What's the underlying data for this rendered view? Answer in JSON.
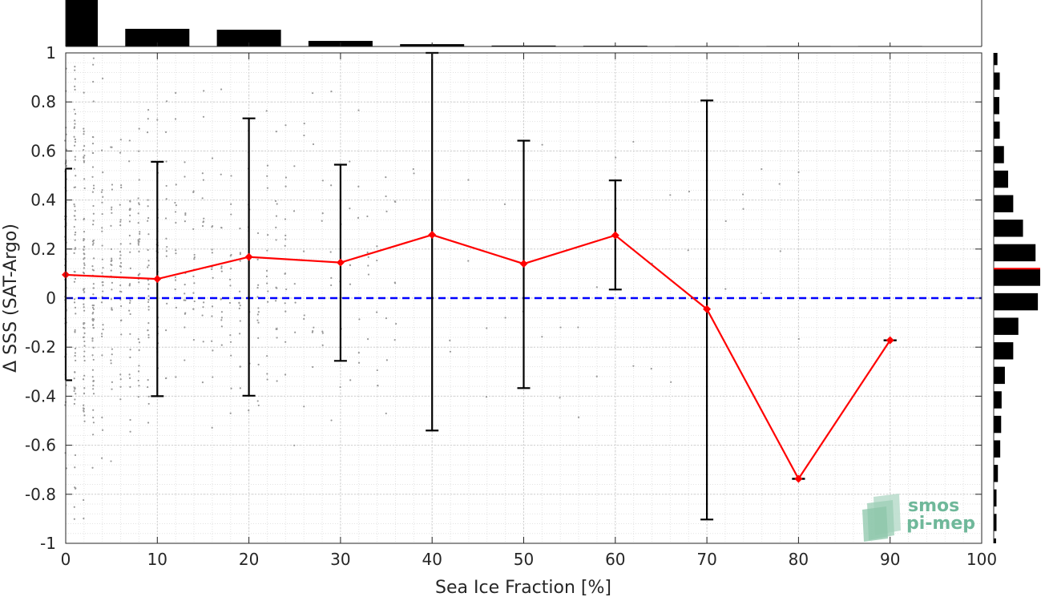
{
  "chart_data": {
    "type": "line",
    "xlabel": "Sea Ice Fraction [%]",
    "ylabel": "Δ SSS (SAT-Argo)",
    "xlim": [
      0,
      100
    ],
    "ylim": [
      -1,
      1
    ],
    "xticks": [
      0,
      10,
      20,
      30,
      40,
      50,
      60,
      70,
      80,
      90,
      100
    ],
    "yticks": [
      -1,
      -0.8,
      -0.6,
      -0.4,
      -0.2,
      0,
      0.2,
      0.4,
      0.6,
      0.8,
      1
    ],
    "xtick_labels": [
      "0",
      "10",
      "20",
      "30",
      "40",
      "50",
      "60",
      "70",
      "80",
      "90",
      "100"
    ],
    "ytick_labels": [
      "-1",
      "-0.8",
      "-0.6",
      "-0.4",
      "-0.2",
      "0",
      "0.2",
      "0.4",
      "0.6",
      "0.8",
      "1"
    ],
    "grid": true,
    "reference_line": {
      "y": 0,
      "color": "#0000ff",
      "style": "dashed"
    },
    "mean_series": {
      "color": "#ff0000",
      "x": [
        0,
        10,
        20,
        30,
        40,
        50,
        60,
        70,
        80,
        90
      ],
      "y": [
        0.095,
        0.078,
        0.168,
        0.145,
        0.258,
        0.14,
        0.256,
        -0.045,
        -0.737,
        -0.172
      ]
    },
    "error_bars": [
      {
        "x": 0,
        "low": -0.335,
        "high": 0.528
      },
      {
        "x": 10,
        "low": -0.4,
        "high": 0.556
      },
      {
        "x": 20,
        "low": -0.398,
        "high": 0.733
      },
      {
        "x": 30,
        "low": -0.256,
        "high": 0.544
      },
      {
        "x": 40,
        "low": -0.54,
        "high": 1.0
      },
      {
        "x": 50,
        "low": -0.367,
        "high": 0.642
      },
      {
        "x": 60,
        "low": 0.035,
        "high": 0.48
      },
      {
        "x": 70,
        "low": -0.903,
        "high": 0.806
      },
      {
        "x": 80,
        "low": -0.737,
        "high": -0.737
      },
      {
        "x": 90,
        "low": -0.172,
        "high": -0.172
      }
    ],
    "top_histogram": {
      "bins": [
        [
          0,
          3.5
        ],
        [
          6.5,
          13.5
        ],
        [
          16.5,
          23.5
        ],
        [
          26.5,
          33.5
        ],
        [
          36.5,
          43.5
        ],
        [
          46.5,
          53.5
        ],
        [
          56.5,
          63.5
        ],
        [
          66.5,
          73.5
        ],
        [
          76.5,
          83.5
        ],
        [
          86.5,
          93.5
        ]
      ],
      "heights": [
        1.0,
        0.38,
        0.36,
        0.12,
        0.05,
        0.02,
        0.015,
        0.01,
        0.01,
        0.01
      ],
      "color": "#000000"
    },
    "right_histogram": {
      "bins": [
        [
          0.95,
          1.0
        ],
        [
          0.85,
          0.92
        ],
        [
          0.75,
          0.82
        ],
        [
          0.65,
          0.72
        ],
        [
          0.55,
          0.62
        ],
        [
          0.45,
          0.52
        ],
        [
          0.35,
          0.42
        ],
        [
          0.25,
          0.32
        ],
        [
          0.15,
          0.22
        ],
        [
          0.05,
          0.12
        ],
        [
          -0.05,
          0.02
        ],
        [
          -0.15,
          -0.08
        ],
        [
          -0.25,
          -0.18
        ],
        [
          -0.35,
          -0.28
        ],
        [
          -0.45,
          -0.38
        ],
        [
          -0.55,
          -0.48
        ],
        [
          -0.65,
          -0.58
        ],
        [
          -0.75,
          -0.68
        ],
        [
          -0.85,
          -0.78
        ],
        [
          -0.95,
          -0.88
        ],
        [
          -1.0,
          -0.98
        ]
      ],
      "widths": [
        0.08,
        0.13,
        0.12,
        0.13,
        0.22,
        0.31,
        0.42,
        0.63,
        0.9,
        1.0,
        0.95,
        0.53,
        0.42,
        0.24,
        0.17,
        0.16,
        0.14,
        0.09,
        0.06,
        0.06,
        0.05
      ],
      "mean_marker": {
        "y": 0.12,
        "color": "#ff0000"
      },
      "color": "#000000"
    },
    "scatter_color": "#999999"
  },
  "logo": {
    "line1": "smos",
    "line2": "pi-mep",
    "color": "#6fb89a"
  }
}
